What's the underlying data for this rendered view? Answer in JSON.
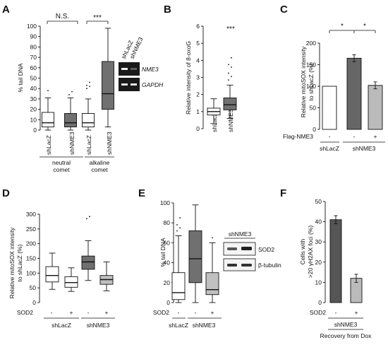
{
  "panels": {
    "A": {
      "letter": "A",
      "ylabel": "% tail DNA",
      "yticks": [
        "0",
        "10",
        "20",
        "30",
        "40",
        "50",
        "60",
        "70",
        "80",
        "90",
        "100"
      ],
      "xlabels": [
        "shLacZ",
        "shNME3",
        "shLacZ",
        "shNME3"
      ],
      "group1": {
        "line1": "neutral",
        "line2": "comet"
      },
      "group2": {
        "line1": "alkaline",
        "line2": "comet"
      },
      "sig_left": "N.S.",
      "sig_right": "***",
      "gel": {
        "col1": "shLacZ",
        "col2": "shNME3",
        "row1": "NME3",
        "row2": "GAPDH"
      }
    },
    "B": {
      "letter": "B",
      "ylabel": "Relative intensity of 8-oxoG",
      "yticks": [
        "0",
        "1",
        "2",
        "3",
        "4",
        "5",
        "6"
      ],
      "xlabels": [
        "shLacZ",
        "shNME3"
      ],
      "sig": "***"
    },
    "C": {
      "letter": "C",
      "ylabel_line1": "Relative mitoSOX intensity",
      "ylabel_line2": "to shLacZ (%)",
      "yticks": [
        "0",
        "50",
        "100",
        "150",
        "200"
      ],
      "cond_label": "Flag-NME3",
      "conds": [
        "-",
        "-",
        "+"
      ],
      "sig1": "*",
      "sig2": "*",
      "group1": "shLacZ",
      "group2": "shNME3"
    },
    "D": {
      "letter": "D",
      "ylabel_line1": "Relative mitoSOX intensity",
      "ylabel_line2": "to shLacZ (%)",
      "yticks": [
        "0",
        "50",
        "100",
        "150",
        "200",
        "250",
        "300"
      ],
      "cond_label": "SOD2",
      "conds": [
        "-",
        "+",
        "-",
        "+"
      ],
      "group1": "shLacZ",
      "group2": "shNME3"
    },
    "E": {
      "letter": "E",
      "ylabel": "% tail DNA",
      "yticks": [
        "0",
        "20",
        "40",
        "60",
        "80",
        "100"
      ],
      "cond_label": "SOD2",
      "conds": [
        "-",
        "-",
        "+"
      ],
      "group1": "shLacZ",
      "group2": "shNME3",
      "blot": {
        "header": "shNME3",
        "row1": "SOD2",
        "row2": "β-tubulin"
      }
    },
    "F": {
      "letter": "F",
      "ylabel_line1": "Cells with",
      "ylabel_line2": ">20 γH2AX foci (%)",
      "yticks": [
        "0",
        "10",
        "20",
        "30",
        "40",
        "50"
      ],
      "cond_label": "SOD2",
      "conds": [
        "-",
        "+"
      ],
      "group": "shNME3",
      "subgroup": "Recovery from Dox"
    }
  },
  "chart_data": [
    {
      "panel": "A",
      "type": "box",
      "ylabel": "% tail DNA",
      "ylim": [
        0,
        100
      ],
      "categories": [
        "shLacZ",
        "shNME3",
        "shLacZ",
        "shNME3"
      ],
      "boxes": [
        {
          "min": 0,
          "q1": 3,
          "median": 7,
          "q3": 17,
          "max": 31,
          "outliers": [
            38
          ],
          "fill": "#ffffff"
        },
        {
          "min": 0,
          "q1": 3,
          "median": 7,
          "q3": 16,
          "max": 31,
          "outliers": [
            34,
            37
          ],
          "fill": "#707070"
        },
        {
          "min": 0,
          "q1": 3,
          "median": 7,
          "q3": 16,
          "max": 30,
          "outliers": [
            40,
            42,
            43,
            46
          ],
          "fill": "#ffffff"
        },
        {
          "min": 3,
          "q1": 20,
          "median": 35,
          "q3": 66,
          "max": 98,
          "outliers": [],
          "fill": "#707070"
        }
      ],
      "sig": [
        "N.S.",
        "***"
      ]
    },
    {
      "panel": "B",
      "type": "box",
      "ylabel": "Relative intensity of 8-oxoG",
      "ylim": [
        0,
        6
      ],
      "categories": [
        "shLacZ",
        "shNME3"
      ],
      "boxes": [
        {
          "min": 0.3,
          "q1": 0.8,
          "median": 1.0,
          "q3": 1.2,
          "max": 1.75,
          "outliers": [],
          "fill": "#ffffff"
        },
        {
          "min": 0.6,
          "q1": 1.1,
          "median": 1.4,
          "q3": 1.8,
          "max": 2.55,
          "outliers": [
            2.85,
            3.05,
            3.25,
            3.6,
            3.75,
            4.15
          ],
          "fill": "#707070"
        }
      ],
      "sig": [
        "***"
      ]
    },
    {
      "panel": "C",
      "type": "bar",
      "ylabel": "Relative mitoSOX intensity to shLacZ (%)",
      "ylim": [
        0,
        200
      ],
      "categories": [
        "shLacZ -",
        "shNME3 -",
        "shNME3 +"
      ],
      "values": [
        100,
        165,
        102
      ],
      "errors": [
        0,
        8,
        8
      ],
      "fills": [
        "#ffffff",
        "#666666",
        "#bbbbbb"
      ],
      "sig": [
        "*",
        "*"
      ]
    },
    {
      "panel": "D",
      "type": "box",
      "ylabel": "Relative mitoSOX intensity to shLacZ (%)",
      "ylim": [
        0,
        300
      ],
      "categories": [
        "shLacZ -",
        "shLacZ +",
        "shNME3 -",
        "shNME3 +"
      ],
      "boxes": [
        {
          "min": 45,
          "q1": 70,
          "median": 92,
          "q3": 122,
          "max": 168,
          "outliers": [],
          "fill": "#ffffff"
        },
        {
          "min": 38,
          "q1": 52,
          "median": 68,
          "q3": 88,
          "max": 118,
          "outliers": [],
          "fill": "#ffffff"
        },
        {
          "min": 75,
          "q1": 113,
          "median": 138,
          "q3": 158,
          "max": 210,
          "outliers": [
            285,
            292
          ],
          "fill": "#707070"
        },
        {
          "min": 40,
          "q1": 62,
          "median": 78,
          "q3": 92,
          "max": 138,
          "outliers": [],
          "fill": "#c0c0c0"
        }
      ]
    },
    {
      "panel": "E",
      "type": "box",
      "ylabel": "% tail DNA",
      "ylim": [
        0,
        100
      ],
      "categories": [
        "shLacZ -",
        "shNME3 -",
        "shNME3 +"
      ],
      "boxes": [
        {
          "min": 0,
          "q1": 3,
          "median": 10,
          "q3": 30,
          "max": 67,
          "outliers": [
            72,
            75,
            78,
            85
          ],
          "fill": "#ffffff"
        },
        {
          "min": 0,
          "q1": 20,
          "median": 44,
          "q3": 72,
          "max": 98,
          "outliers": [],
          "fill": "#707070"
        },
        {
          "min": 0,
          "q1": 8,
          "median": 13,
          "q3": 30,
          "max": 60,
          "outliers": [
            65
          ],
          "fill": "#c0c0c0"
        }
      ]
    },
    {
      "panel": "F",
      "type": "bar",
      "ylabel": "Cells with >20 γH2AX foci (%)",
      "ylim": [
        0,
        50
      ],
      "categories": [
        "SOD2 -",
        "SOD2 +"
      ],
      "values": [
        41,
        12
      ],
      "errors": [
        2,
        2
      ],
      "fills": [
        "#555555",
        "#bbbbbb"
      ]
    }
  ]
}
